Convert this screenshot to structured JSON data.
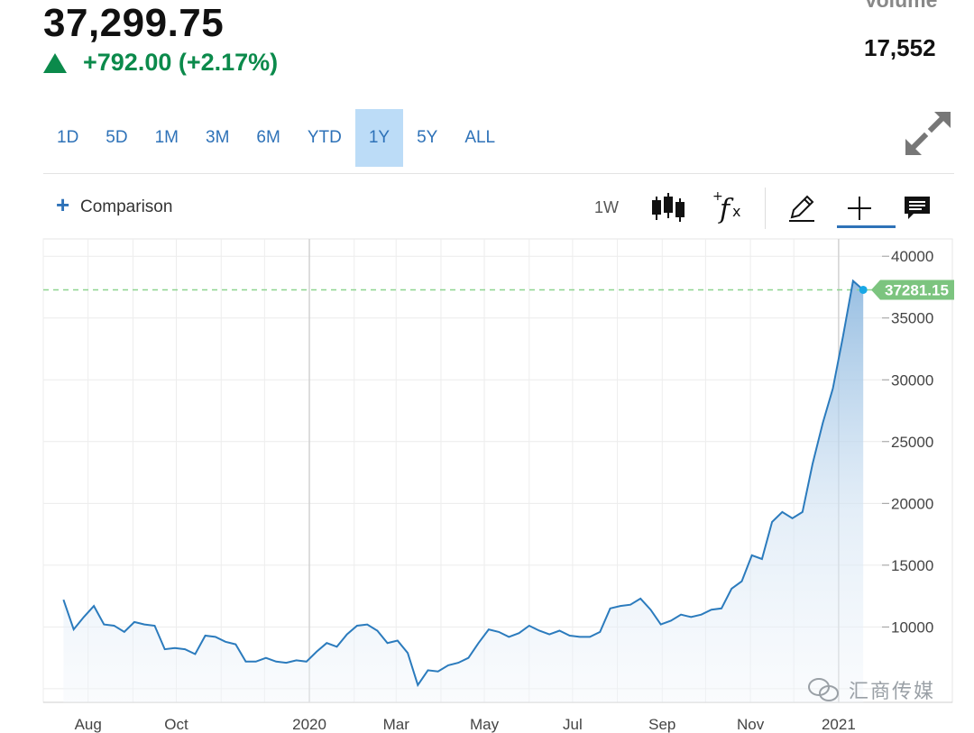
{
  "quote": {
    "price": "37,299.75",
    "change": "+792.00 (+2.17%)",
    "volume_label": "Volume",
    "volume_value": "17,552"
  },
  "ranges": [
    "1D",
    "5D",
    "1M",
    "3M",
    "6M",
    "YTD",
    "1Y",
    "5Y",
    "ALL"
  ],
  "active_range": "1Y",
  "toolbar": {
    "comparison_label": "Comparison",
    "interval_label": "1W",
    "icons": [
      "plus-icon",
      "candlestick-icon",
      "function-icon",
      "pencil-icon",
      "crosshair-icon",
      "comment-icon",
      "expand-icon"
    ]
  },
  "watermark": {
    "text": "汇商传媒"
  },
  "colors": {
    "line": "#2b7bbd",
    "up": "#0b8a4b",
    "accent": "#2e72b8",
    "last_price": "#7cc47f",
    "active_range_bg": "#bcdcf7"
  },
  "chart_data": {
    "type": "area",
    "xlabels": [
      "Aug",
      "Oct",
      "2020",
      "Mar",
      "May",
      "Jul",
      "Sep",
      "Nov",
      "2021"
    ],
    "x": [
      "2019-07-15",
      "2019-07-22",
      "2019-07-29",
      "2019-08-05",
      "2019-08-12",
      "2019-08-19",
      "2019-08-26",
      "2019-09-02",
      "2019-09-09",
      "2019-09-16",
      "2019-09-23",
      "2019-09-30",
      "2019-10-07",
      "2019-10-14",
      "2019-10-21",
      "2019-10-28",
      "2019-11-04",
      "2019-11-11",
      "2019-11-18",
      "2019-11-25",
      "2019-12-02",
      "2019-12-09",
      "2019-12-16",
      "2019-12-23",
      "2019-12-30",
      "2020-01-06",
      "2020-01-13",
      "2020-01-20",
      "2020-01-27",
      "2020-02-03",
      "2020-02-10",
      "2020-02-17",
      "2020-02-24",
      "2020-03-02",
      "2020-03-09",
      "2020-03-16",
      "2020-03-23",
      "2020-03-30",
      "2020-04-06",
      "2020-04-13",
      "2020-04-20",
      "2020-04-27",
      "2020-05-04",
      "2020-05-11",
      "2020-05-18",
      "2020-05-25",
      "2020-06-01",
      "2020-06-08",
      "2020-06-15",
      "2020-06-22",
      "2020-06-29",
      "2020-07-06",
      "2020-07-13",
      "2020-07-20",
      "2020-07-27",
      "2020-08-03",
      "2020-08-10",
      "2020-08-17",
      "2020-08-24",
      "2020-08-31",
      "2020-09-07",
      "2020-09-14",
      "2020-09-21",
      "2020-09-28",
      "2020-10-05",
      "2020-10-12",
      "2020-10-19",
      "2020-10-26",
      "2020-11-02",
      "2020-11-09",
      "2020-11-16",
      "2020-11-23",
      "2020-11-30",
      "2020-12-07",
      "2020-12-14",
      "2020-12-21",
      "2020-12-28",
      "2021-01-04",
      "2021-01-11",
      "2021-01-18"
    ],
    "values": [
      12200,
      9800,
      10800,
      11700,
      10200,
      10100,
      9600,
      10400,
      10200,
      10100,
      8200,
      8300,
      8200,
      7800,
      9300,
      9200,
      8800,
      8600,
      7200,
      7200,
      7500,
      7200,
      7100,
      7300,
      7200,
      8000,
      8700,
      8400,
      9400,
      10100,
      10200,
      9700,
      8700,
      8900,
      7900,
      5300,
      6500,
      6400,
      6900,
      7100,
      7500,
      8700,
      9800,
      9600,
      9200,
      9500,
      10100,
      9700,
      9400,
      9700,
      9300,
      9200,
      9200,
      9600,
      11500,
      11700,
      11800,
      12300,
      11400,
      10200,
      10500,
      11000,
      10800,
      11000,
      11400,
      11500,
      13100,
      13700,
      15800,
      15500,
      18500,
      19300,
      18800,
      19300,
      23200,
      26500,
      29300,
      33500,
      38000,
      37281
    ]
  },
  "y_axis": {
    "ticks": [
      10000,
      15000,
      20000,
      25000,
      30000,
      35000,
      40000
    ],
    "min": 3900,
    "max": 41400
  },
  "last_price_label": "37281.15",
  "last_price_value": 37281.15
}
